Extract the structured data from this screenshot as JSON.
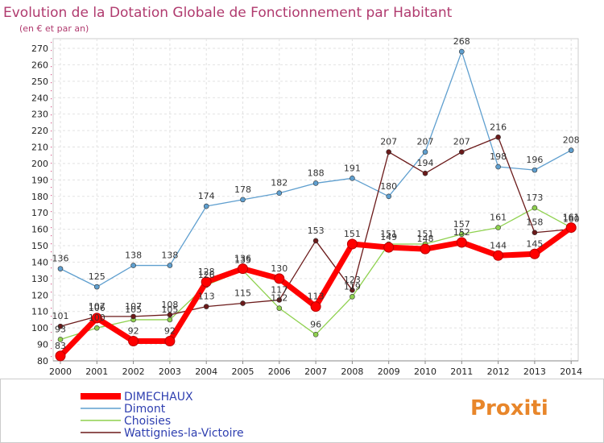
{
  "chart_data": {
    "type": "line",
    "title": "Evolution de la Dotation Globale de Fonctionnement par Habitant",
    "subtitle": "(en € et par an)",
    "x": [
      "2000",
      "2001",
      "2002",
      "2003",
      "2004",
      "2005",
      "2006",
      "2007",
      "2008",
      "2009",
      "2010",
      "2011",
      "2012",
      "2013",
      "2014"
    ],
    "ylim": [
      80,
      270
    ],
    "yticks": [
      80,
      90,
      100,
      110,
      120,
      130,
      140,
      150,
      160,
      170,
      180,
      190,
      200,
      210,
      220,
      230,
      240,
      250,
      260,
      270
    ],
    "grid": true,
    "legend_position": "bottom-left",
    "series": [
      {
        "name": "DIMECHAUX",
        "color": "#ff0000",
        "values": [
          83,
          106,
          92,
          92,
          128,
          136,
          130,
          113,
          151,
          149,
          148,
          152,
          144,
          145,
          161
        ]
      },
      {
        "name": "Dimont",
        "color": "#5f9fcf",
        "values": [
          136,
          125,
          138,
          138,
          174,
          178,
          182,
          188,
          191,
          180,
          207,
          268,
          198,
          196,
          208
        ]
      },
      {
        "name": "Choisies",
        "color": "#8fd14f",
        "values": [
          93,
          100,
          105,
          105,
          126,
          135,
          112,
          96,
          119,
          151,
          151,
          157,
          161,
          173,
          161
        ]
      },
      {
        "name": "Wattignies-la-Victoire",
        "color": "#6b1a1a",
        "values": [
          101,
          107,
          107,
          108,
          113,
          115,
          117,
          153,
          123,
          207,
          194,
          207,
          216,
          158,
          160
        ]
      }
    ]
  },
  "brand": {
    "logo_text": "Proxiti"
  }
}
